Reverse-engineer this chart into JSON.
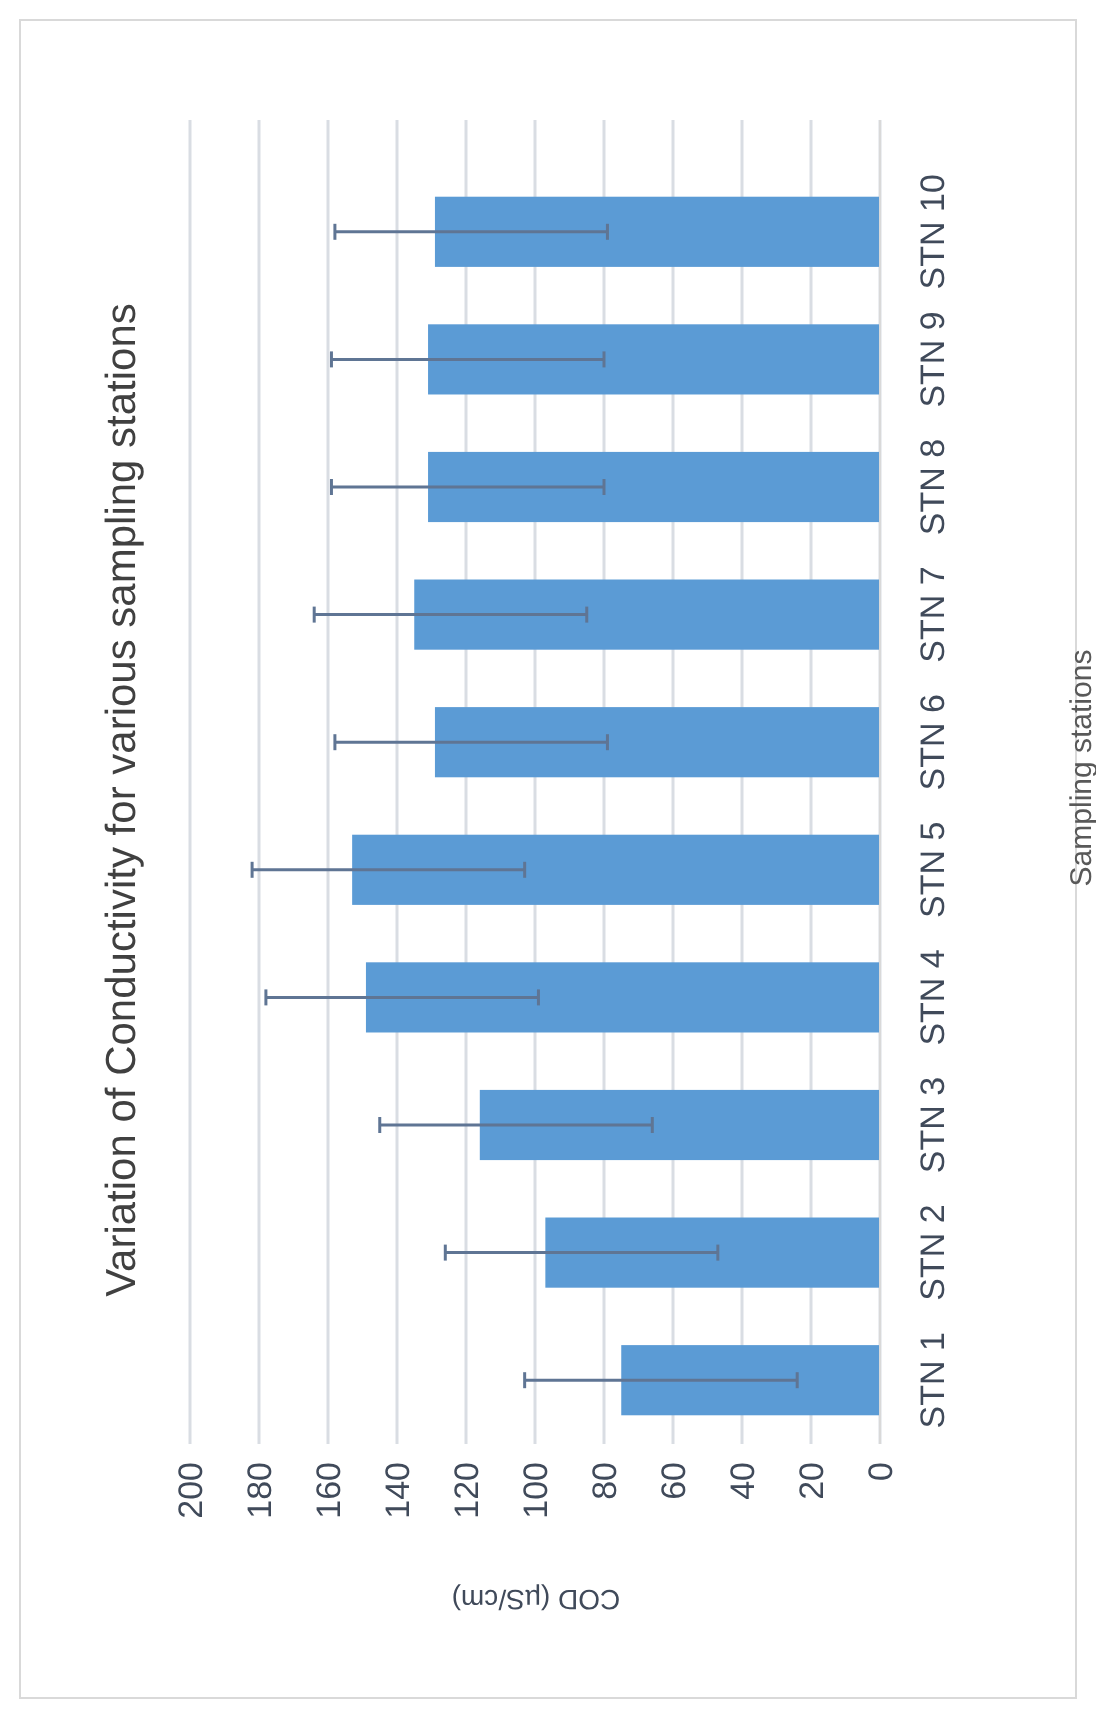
{
  "chart_data": {
    "type": "bar",
    "orientation": "horizontal",
    "title": "Variation of Conductivity for various sampling stations",
    "ylabel": "Sampling stations",
    "xlabel": "COD (µS/cm)",
    "categories": [
      "STN 10",
      "STN 9",
      "STN 8",
      "STN 7",
      "STN 6",
      "STN 5",
      "STN 4",
      "STN 3",
      "STN 2",
      "STN 1"
    ],
    "values": [
      129,
      131,
      131,
      135,
      129,
      153,
      149,
      116,
      97,
      75
    ],
    "errors": [
      [
        79,
        158
      ],
      [
        80,
        159
      ],
      [
        80,
        159
      ],
      [
        85,
        164
      ],
      [
        79,
        158
      ],
      [
        103,
        182
      ],
      [
        99,
        178
      ],
      [
        66,
        145
      ],
      [
        47,
        126
      ],
      [
        24,
        103
      ]
    ],
    "color": "#5b9bd5",
    "xlim": [
      200,
      0
    ],
    "xticks": [
      0,
      20,
      40,
      60,
      80,
      100,
      120,
      140,
      160,
      180,
      200
    ],
    "grid": true
  }
}
